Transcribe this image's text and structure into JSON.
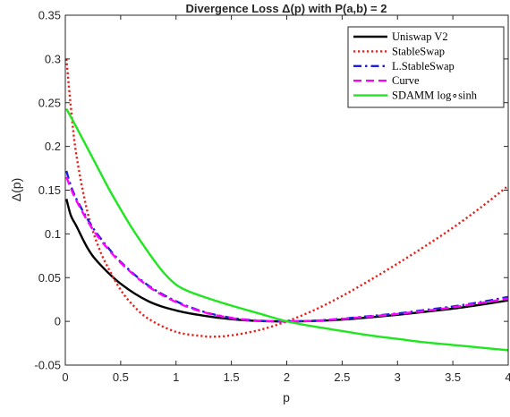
{
  "chart_data": {
    "type": "line",
    "title": "Divergence Loss Δ(p) with P(a,b) = 2",
    "xlabel": "p",
    "ylabel": "Δ(p)",
    "xlim": [
      0,
      4
    ],
    "ylim": [
      -0.05,
      0.35
    ],
    "xticks": [
      0,
      0.5,
      1,
      1.5,
      2,
      2.5,
      3,
      3.5,
      4
    ],
    "xtick_labels": [
      "0",
      "0.5",
      "1",
      "1.5",
      "2",
      "2.5",
      "3",
      "3.5",
      "4"
    ],
    "yticks": [
      -0.05,
      0,
      0.05,
      0.1,
      0.15,
      0.2,
      0.25,
      0.3,
      0.35
    ],
    "ytick_labels": [
      "-0.05",
      "0",
      "0.05",
      "0.1",
      "0.15",
      "0.2",
      "0.25",
      "0.3",
      "0.35"
    ],
    "grid": false,
    "legend_position": "top-right",
    "series": [
      {
        "name": "Uniswap V2",
        "color": "#000000",
        "style": "solid",
        "x": [
          0.01,
          0.05,
          0.1,
          0.2,
          0.3,
          0.5,
          0.75,
          1,
          1.25,
          1.5,
          1.75,
          2,
          2.25,
          2.5,
          2.75,
          3,
          3.25,
          3.5,
          3.75,
          4
        ],
        "y": [
          0.14,
          0.121,
          0.109,
          0.084,
          0.067,
          0.043,
          0.023,
          0.0125,
          0.0065,
          0.0025,
          0.0005,
          0,
          0.0005,
          0.002,
          0.0045,
          0.0075,
          0.011,
          0.0145,
          0.019,
          0.024
        ]
      },
      {
        "name": "StableSwap",
        "color": "#e8201a",
        "style": "dotted",
        "x": [
          0.01,
          0.05,
          0.1,
          0.2,
          0.3,
          0.4,
          0.5,
          0.6,
          0.75,
          1,
          1.25,
          1.35,
          1.5,
          1.75,
          2,
          2.25,
          2.5,
          2.75,
          3,
          3.25,
          3.5,
          3.75,
          4
        ],
        "y": [
          0.3,
          0.245,
          0.19,
          0.125,
          0.085,
          0.058,
          0.036,
          0.02,
          0.003,
          -0.012,
          -0.017,
          -0.0175,
          -0.016,
          -0.01,
          0,
          0.013,
          0.029,
          0.047,
          0.066,
          0.086,
          0.107,
          0.13,
          0.155
        ]
      },
      {
        "name": "L.StableSwap",
        "color": "#1f1fd6",
        "style": "dashdot",
        "x": [
          0.01,
          0.05,
          0.1,
          0.2,
          0.3,
          0.5,
          0.75,
          1,
          1.25,
          1.5,
          1.75,
          2,
          2.25,
          2.5,
          2.75,
          3,
          3.25,
          3.5,
          3.75,
          4
        ],
        "y": [
          0.172,
          0.155,
          0.14,
          0.117,
          0.098,
          0.068,
          0.041,
          0.023,
          0.011,
          0.004,
          0.0008,
          0,
          0.0008,
          0.003,
          0.006,
          0.009,
          0.013,
          0.017,
          0.022,
          0.028
        ]
      },
      {
        "name": "Curve",
        "color": "#ff00ff",
        "style": "dashed",
        "x": [
          0.01,
          0.05,
          0.1,
          0.2,
          0.3,
          0.5,
          0.75,
          1,
          1.25,
          1.5,
          1.75,
          2,
          2.25,
          2.5,
          2.75,
          3,
          3.25,
          3.5,
          3.75,
          4
        ],
        "y": [
          0.165,
          0.152,
          0.138,
          0.115,
          0.096,
          0.067,
          0.04,
          0.022,
          0.0105,
          0.0038,
          0.0007,
          0,
          0.0007,
          0.0028,
          0.0055,
          0.0085,
          0.012,
          0.016,
          0.021,
          0.026
        ]
      },
      {
        "name": "SDAMM log∘sinh",
        "color": "#1fe61f",
        "style": "solid",
        "x": [
          0.01,
          0.1,
          0.2,
          0.3,
          0.4,
          0.5,
          0.6,
          0.7,
          0.8,
          0.9,
          1,
          1.1,
          1.25,
          1.5,
          1.75,
          2,
          2.25,
          2.5,
          2.75,
          3,
          3.25,
          3.5,
          3.75,
          4
        ],
        "y": [
          0.243,
          0.222,
          0.198,
          0.174,
          0.15,
          0.128,
          0.107,
          0.088,
          0.07,
          0.054,
          0.042,
          0.035,
          0.028,
          0.018,
          0.009,
          0,
          -0.006,
          -0.011,
          -0.016,
          -0.02,
          -0.024,
          -0.027,
          -0.03,
          -0.033
        ]
      }
    ]
  }
}
